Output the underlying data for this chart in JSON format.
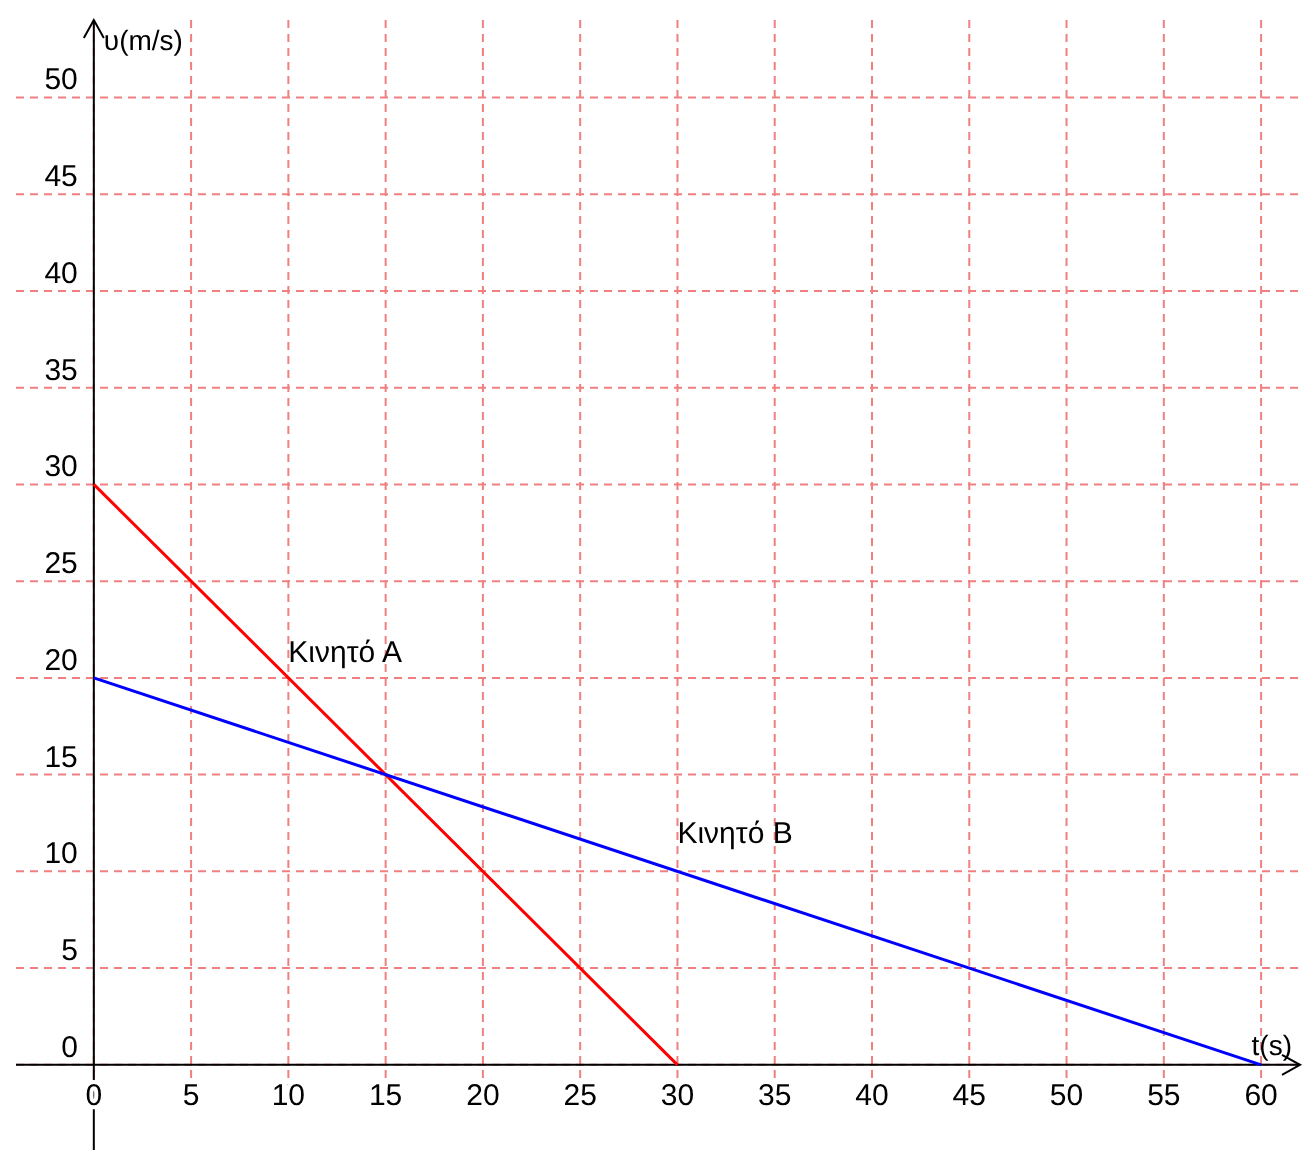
{
  "chart_data": {
    "type": "line",
    "xlabel": "t(s)",
    "ylabel": "υ(m/s)",
    "xlim": [
      -4,
      62
    ],
    "ylim": [
      -4.4,
      54
    ],
    "xticks": [
      0,
      5,
      10,
      15,
      20,
      25,
      30,
      35,
      40,
      45,
      50,
      55,
      60
    ],
    "yticks": [
      0,
      5,
      10,
      15,
      20,
      25,
      30,
      35,
      40,
      45,
      50
    ],
    "grid": true,
    "marker": "none",
    "line_style": "solid",
    "series": [
      {
        "name": "Κινητό Α",
        "color": "#ff0000",
        "x": [
          0,
          30
        ],
        "values": [
          30,
          0
        ]
      },
      {
        "name": "Κινητό Β",
        "color": "#0000ff",
        "x": [
          0,
          60
        ],
        "values": [
          20,
          0
        ]
      }
    ]
  }
}
